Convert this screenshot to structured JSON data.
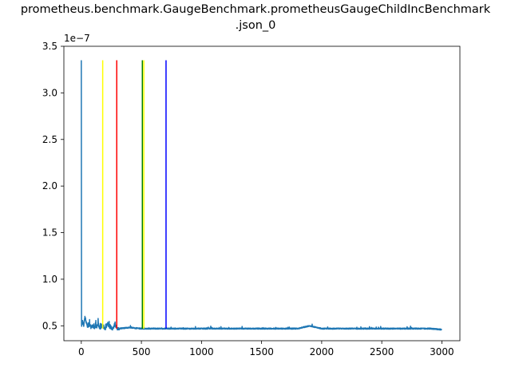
{
  "chart_data": {
    "type": "line",
    "title_line1": "prometheus.benchmark.GaugeBenchmark.prometheusGaugeChildIncBenchmark",
    "title_line2": ".json_0",
    "xlabel": "",
    "ylabel": "",
    "offset_text": "1e−7",
    "xlim": [
      -145,
      3150
    ],
    "ylim": [
      0.34,
      3.5
    ],
    "y_scale_exponent": -7,
    "xticks": [
      0,
      500,
      1000,
      1500,
      2000,
      2500,
      3000
    ],
    "xtick_labels": [
      "0",
      "500",
      "1000",
      "1500",
      "2000",
      "2500",
      "3000"
    ],
    "yticks": [
      0.5,
      1.0,
      1.5,
      2.0,
      2.5,
      3.0,
      3.5
    ],
    "ytick_labels": [
      "0.5",
      "1.0",
      "1.5",
      "2.0",
      "2.5",
      "3.0",
      "3.5"
    ],
    "grid": false,
    "legend": "none",
    "series": [
      {
        "color": "#1f77b4",
        "n_points": 3000,
        "baseline": 0.47,
        "x": [
          0,
          2,
          5,
          10,
          20,
          30,
          40,
          50,
          60,
          70,
          80,
          90,
          100,
          110,
          120,
          130,
          140,
          150,
          160,
          170,
          180,
          190,
          200,
          220,
          240,
          260,
          280,
          300,
          400,
          500,
          600,
          700,
          800,
          900,
          1000,
          1100,
          1200,
          1300,
          1400,
          1500,
          1600,
          1700,
          1800,
          1900,
          2000,
          2100,
          2200,
          2300,
          2400,
          2500,
          2600,
          2700,
          2800,
          2900,
          3000
        ],
        "y": [
          3.35,
          0.48,
          0.52,
          0.55,
          0.5,
          0.6,
          0.54,
          0.5,
          0.49,
          0.52,
          0.48,
          0.5,
          0.49,
          0.48,
          0.5,
          0.49,
          0.53,
          0.48,
          0.47,
          0.5,
          0.49,
          0.48,
          0.47,
          0.52,
          0.48,
          0.47,
          0.51,
          0.47,
          0.48,
          0.47,
          0.47,
          0.47,
          0.47,
          0.47,
          0.47,
          0.47,
          0.47,
          0.47,
          0.47,
          0.47,
          0.47,
          0.47,
          0.47,
          0.5,
          0.47,
          0.47,
          0.47,
          0.47,
          0.47,
          0.47,
          0.47,
          0.47,
          0.47,
          0.47,
          0.46
        ]
      }
    ],
    "vlines": [
      {
        "x": 178,
        "color": "#ffff00"
      },
      {
        "x": 295,
        "color": "#ff0000"
      },
      {
        "x": 508,
        "color": "#008000"
      },
      {
        "x": 520,
        "color": "#ffff00"
      },
      {
        "x": 705,
        "color": "#0000ff"
      }
    ],
    "vline_range": [
      0.47,
      3.35
    ]
  }
}
